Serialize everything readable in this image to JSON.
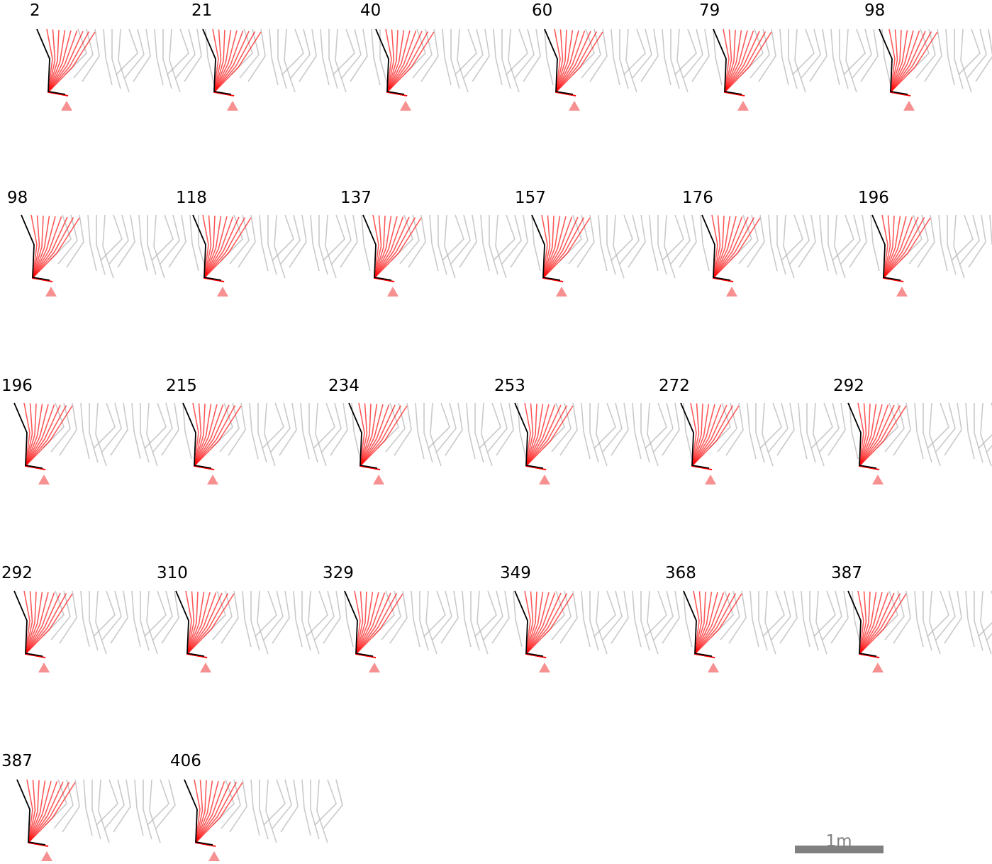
{
  "figure": {
    "rows": [
      {
        "labels": [
          "2",
          "21",
          "40",
          "60",
          "79",
          "98"
        ]
      },
      {
        "labels": [
          "98",
          "118",
          "137",
          "157",
          "176",
          "196"
        ]
      },
      {
        "labels": [
          "196",
          "215",
          "234",
          "253",
          "272",
          "292"
        ]
      },
      {
        "labels": [
          "292",
          "310",
          "329",
          "349",
          "368",
          "387"
        ]
      },
      {
        "labels": [
          "387",
          "406"
        ]
      }
    ],
    "scale_bar": {
      "label": "1m"
    },
    "colors": {
      "current_pose": "#000000",
      "highlight_poses": "#ff0000",
      "background_poses": "#b4b4b4",
      "contact_marker": "#f79090",
      "scale_bar": "#808080"
    }
  }
}
